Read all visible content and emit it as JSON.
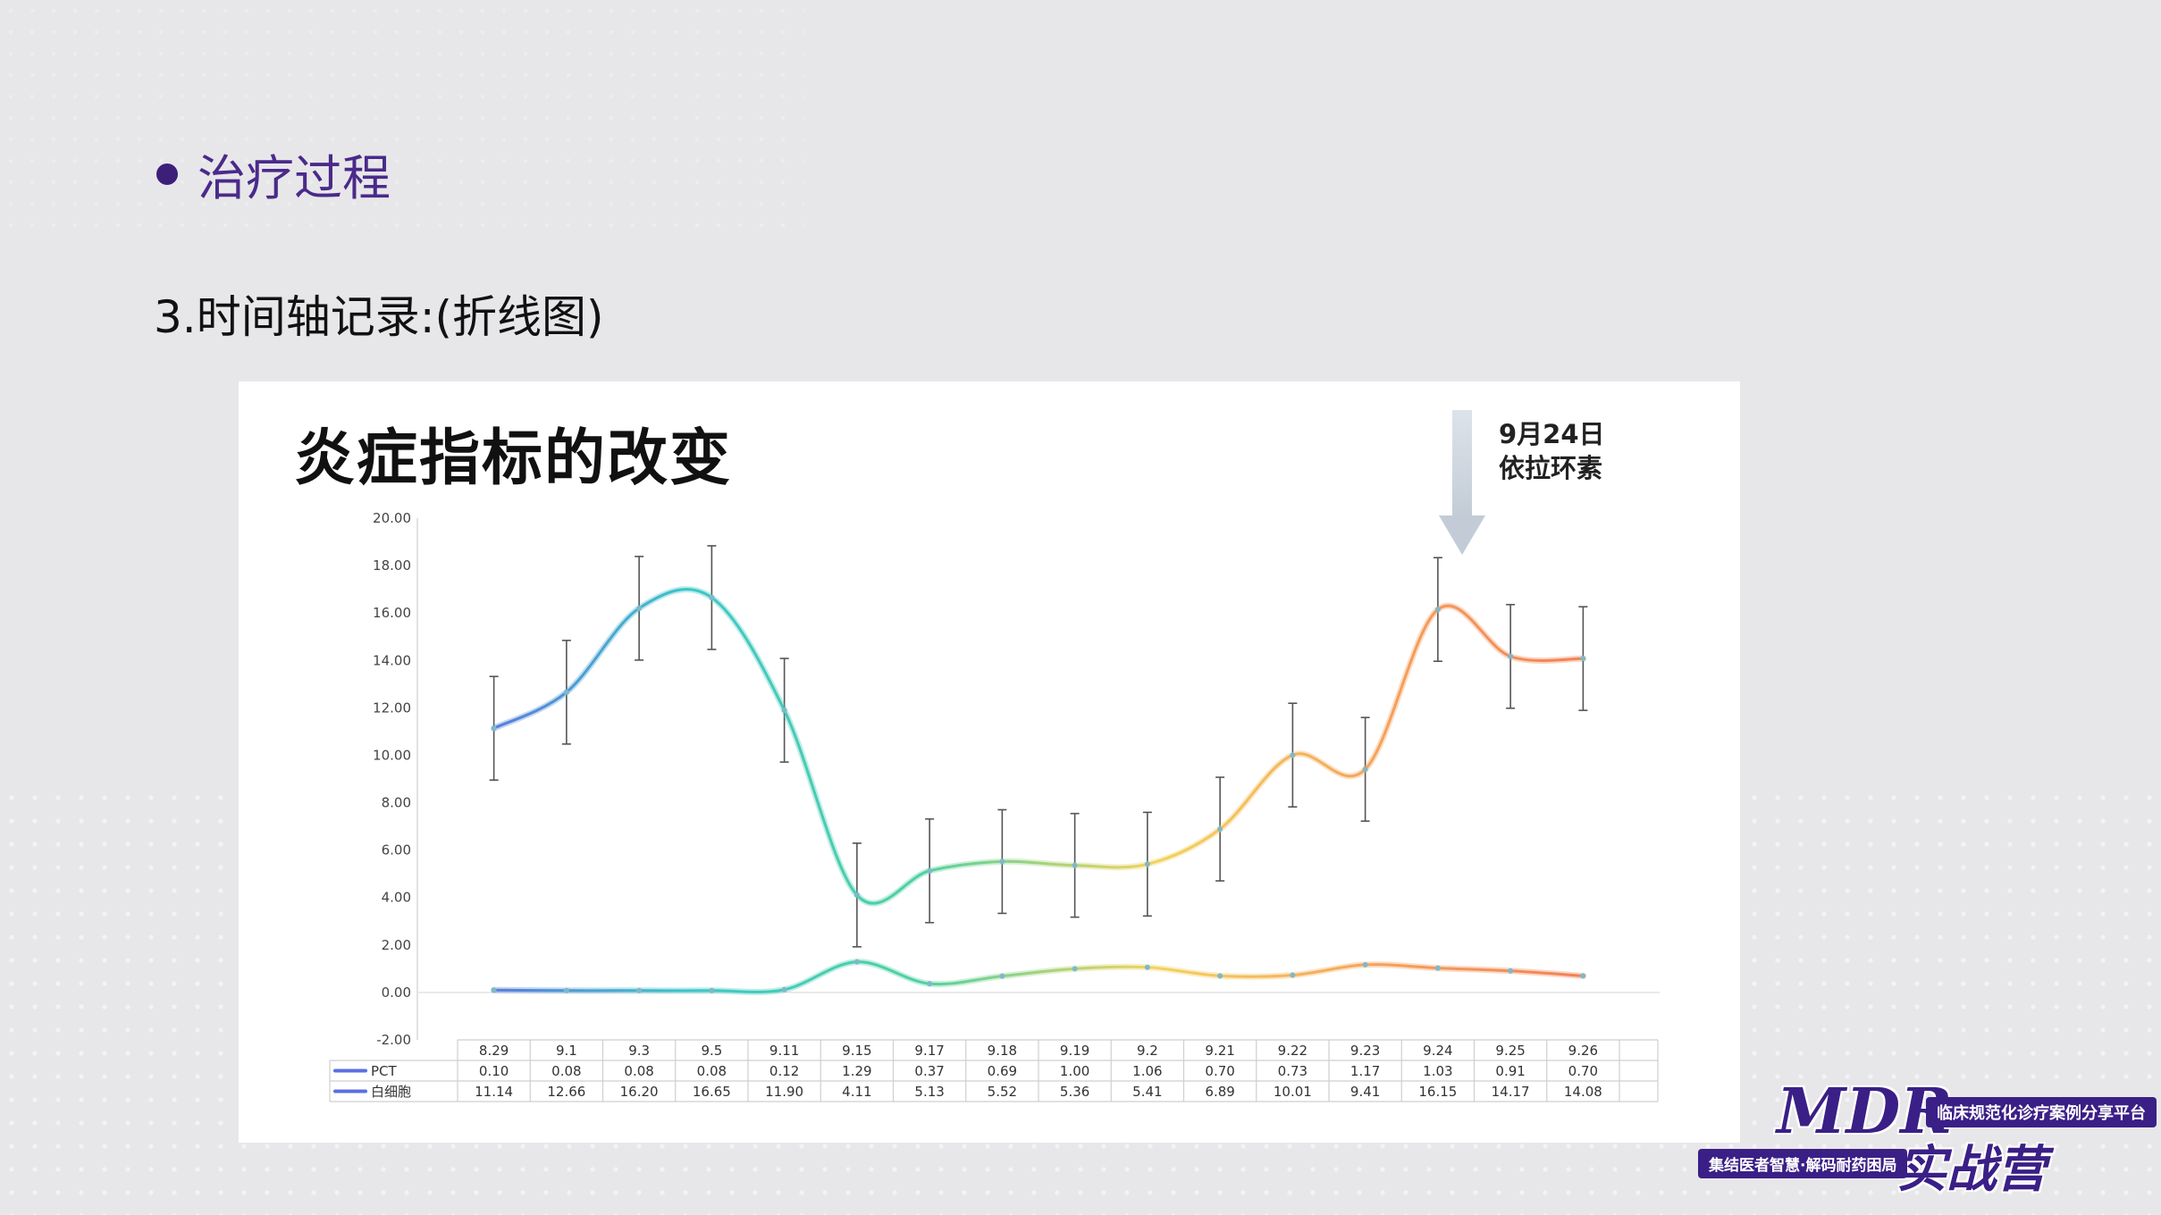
{
  "slide": {
    "heading": "治疗过程",
    "subheading": "3.时间轴记录:(折线图)"
  },
  "annotation": {
    "line1": "9月24日",
    "line2": "依拉环素"
  },
  "brand": {
    "logo": "MDR",
    "tag": "临床规范化诊疗案例分享平台",
    "camp": "实战营",
    "slogan": "集结医者智慧·解码耐药困局"
  },
  "chart_data": {
    "type": "line",
    "title": "炎症指标的改变",
    "categories": [
      "8.29",
      "9.1",
      "9.3",
      "9.5",
      "9.11",
      "9.15",
      "9.17",
      "9.18",
      "9.19",
      "9.2",
      "9.21",
      "9.22",
      "9.23",
      "9.24",
      "9.25",
      "9.26"
    ],
    "series": [
      {
        "name": "PCT",
        "values": [
          0.1,
          0.08,
          0.08,
          0.08,
          0.12,
          1.29,
          0.37,
          0.69,
          1.0,
          1.06,
          0.7,
          0.73,
          1.17,
          1.03,
          0.91,
          0.7
        ]
      },
      {
        "name": "白细胞",
        "values": [
          11.14,
          12.66,
          16.2,
          16.65,
          11.9,
          4.11,
          5.13,
          5.52,
          5.36,
          5.41,
          6.89,
          10.01,
          9.41,
          16.15,
          14.17,
          14.08
        ],
        "error_bars": true
      }
    ],
    "y_ticks": [
      "20.00",
      "18.00",
      "16.00",
      "14.00",
      "12.00",
      "10.00",
      "8.00",
      "6.00",
      "4.00",
      "2.00",
      "0.00",
      "-2.00"
    ],
    "ylim": [
      -2,
      20
    ],
    "data_table": true,
    "gradient_colors": [
      "#5b6fe0",
      "#3cc6c8",
      "#4fd1a0",
      "#f2d35b",
      "#f5a05a",
      "#f07c55"
    ],
    "grid": false
  }
}
